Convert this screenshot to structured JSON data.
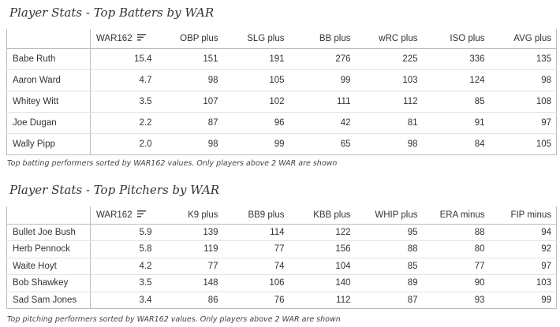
{
  "batters": {
    "title": "Player Stats - Top Batters by WAR",
    "columns": [
      "",
      "WAR162",
      "OBP plus",
      "SLG plus",
      "BB plus",
      "wRC plus",
      "ISO plus",
      "AVG plus"
    ],
    "rows": [
      [
        "Babe Ruth",
        "15.4",
        "151",
        "191",
        "276",
        "225",
        "336",
        "135"
      ],
      [
        "Aaron Ward",
        "4.7",
        "98",
        "105",
        "99",
        "103",
        "124",
        "98"
      ],
      [
        "Whitey Witt",
        "3.5",
        "107",
        "102",
        "111",
        "112",
        "85",
        "108"
      ],
      [
        "Joe Dugan",
        "2.2",
        "87",
        "96",
        "42",
        "81",
        "91",
        "97"
      ],
      [
        "Wally Pipp",
        "2.0",
        "98",
        "99",
        "65",
        "98",
        "84",
        "105"
      ]
    ],
    "caption": "Top batting performers sorted by WAR162 values. Only players above 2 WAR are shown"
  },
  "pitchers": {
    "title": "Player Stats - Top Pitchers by WAR",
    "columns": [
      "",
      "WAR162",
      "K9 plus",
      "BB9 plus",
      "KBB plus",
      "WHIP plus",
      "ERA minus",
      "FIP minus"
    ],
    "rows": [
      [
        "Bullet Joe Bush",
        "5.9",
        "139",
        "114",
        "122",
        "95",
        "88",
        "94"
      ],
      [
        "Herb Pennock",
        "5.8",
        "119",
        "77",
        "156",
        "88",
        "80",
        "92"
      ],
      [
        "Waite Hoyt",
        "4.2",
        "77",
        "74",
        "104",
        "85",
        "77",
        "97"
      ],
      [
        "Bob Shawkey",
        "3.5",
        "148",
        "106",
        "140",
        "89",
        "90",
        "103"
      ],
      [
        "Sad Sam Jones",
        "3.4",
        "86",
        "76",
        "112",
        "87",
        "93",
        "99"
      ]
    ],
    "caption": "Top pitching performers sorted by WAR162 values. Only players above 2 WAR are shown"
  },
  "icons": {
    "sort": "sort-descending-icon"
  }
}
